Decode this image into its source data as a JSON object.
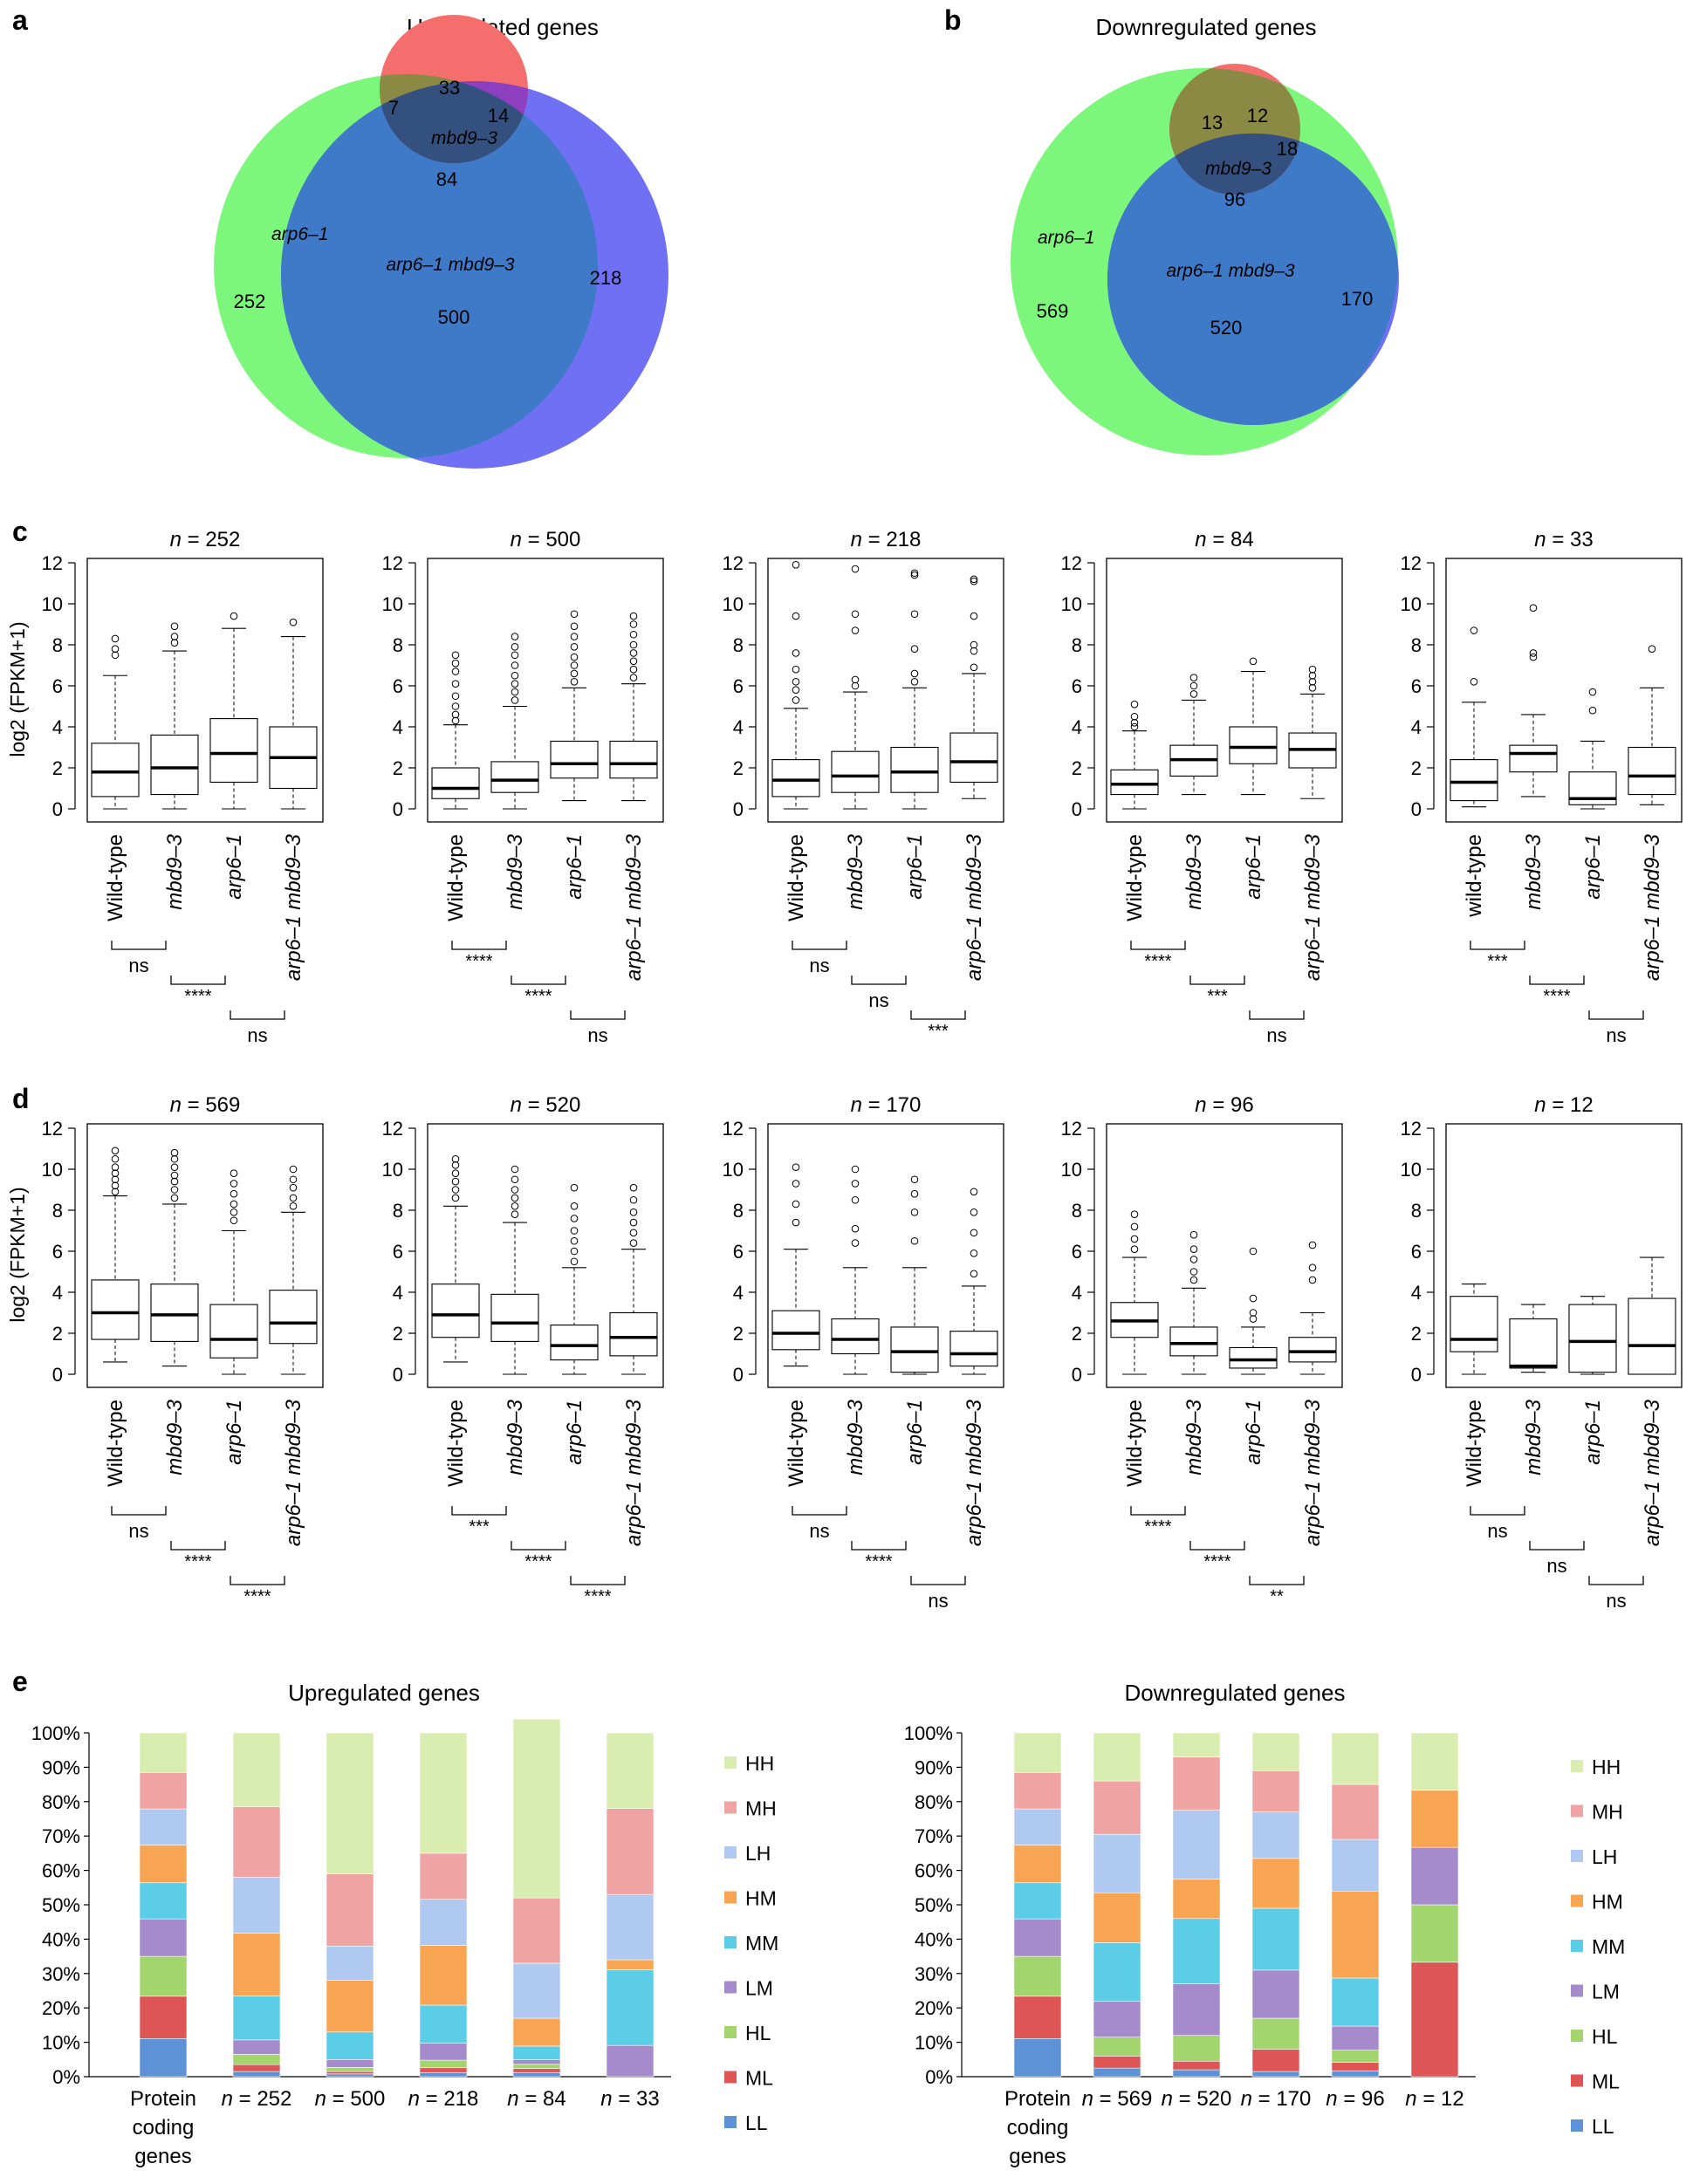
{
  "panel_labels": {
    "a": "a",
    "b": "b",
    "c": "c",
    "d": "d",
    "e": "e"
  },
  "venn": [
    {
      "title": "Upregulated genes",
      "set_labels": {
        "green": "arp6–1",
        "red": "mbd9–3",
        "blue": "arp6–1 mbd9–3"
      },
      "counts": {
        "green_only": "252",
        "red_only": "33",
        "blue_only": "218",
        "green_red": "7",
        "red_blue": "14",
        "all_three": "84",
        "green_blue": "500"
      },
      "colors": {
        "green": "#7CF77C",
        "red": "#F46E6E",
        "blue": "#7070F5",
        "overlap_gb": "#3E7AC8",
        "center": "#34507F"
      }
    },
    {
      "title": "Downregulated genes",
      "set_labels": {
        "green": "arp6–1",
        "red": "mbd9–3",
        "blue": "arp6–1 mbd9–3"
      },
      "counts": {
        "green_only": "569",
        "red_only": "12",
        "blue_only": "170",
        "green_red": "13",
        "red_blue": "18",
        "all_three": "96",
        "green_blue": "520"
      },
      "colors": {
        "green": "#7CF77C",
        "red": "#F46E6E",
        "blue": "#7070F5",
        "overlap_gb": "#3E7AC8",
        "center": "#34507F"
      }
    }
  ],
  "boxplot_ylabel": "log2 (FPKM+1)",
  "boxplot_yticks": [
    "0",
    "2",
    "4",
    "6",
    "8",
    "10",
    "12"
  ],
  "chart_data": [
    {
      "type": "boxplot",
      "panel": "c",
      "ylabel": "log2 (FPKM+1)",
      "ylim": [
        0,
        12
      ],
      "groups": [
        {
          "n_label": "n = 252",
          "categories": [
            "Wild-type",
            "mbd9–3",
            "arp6–1",
            "arp6–1 mbd9–3"
          ],
          "boxes": [
            [
              0.0,
              0.6,
              1.8,
              3.2,
              6.5
            ],
            [
              0.0,
              0.7,
              2.0,
              3.6,
              7.7
            ],
            [
              0.0,
              1.3,
              2.7,
              4.4,
              8.8
            ],
            [
              0.0,
              1.0,
              2.5,
              4.0,
              8.4
            ]
          ],
          "outliers": [
            [
              7.5,
              7.8,
              8.3
            ],
            [
              8.1,
              8.4,
              8.9
            ],
            [
              9.4
            ],
            [
              9.1
            ]
          ],
          "comparisons": [
            "ns",
            "****",
            "ns"
          ]
        },
        {
          "n_label": "n = 500",
          "categories": [
            "Wild-type",
            "mbd9–3",
            "arp6–1",
            "arp6–1 mbd9–3"
          ],
          "boxes": [
            [
              0.0,
              0.5,
              1.0,
              2.0,
              4.1
            ],
            [
              0.0,
              0.8,
              1.4,
              2.3,
              5.0
            ],
            [
              0.4,
              1.5,
              2.2,
              3.3,
              5.9
            ],
            [
              0.4,
              1.5,
              2.2,
              3.3,
              6.1
            ]
          ],
          "outliers": [
            [
              4.3,
              4.6,
              5.0,
              5.5,
              6.1,
              6.7,
              7.1,
              7.5
            ],
            [
              5.3,
              5.7,
              6.1,
              6.5,
              7.0,
              7.5,
              7.9,
              8.4
            ],
            [
              6.2,
              6.6,
              7.0,
              7.4,
              7.9,
              8.4,
              8.9,
              9.5
            ],
            [
              6.4,
              6.8,
              7.2,
              7.6,
              8.0,
              8.5,
              9.0,
              9.4
            ]
          ],
          "comparisons": [
            "****",
            "****",
            "ns"
          ]
        },
        {
          "n_label": "n = 218",
          "categories": [
            "Wild-type",
            "mbd9–3",
            "arp6–1",
            "arp6–1 mbd9–3"
          ],
          "boxes": [
            [
              0.0,
              0.6,
              1.4,
              2.4,
              4.9
            ],
            [
              0.0,
              0.8,
              1.6,
              2.8,
              5.7
            ],
            [
              0.0,
              0.8,
              1.8,
              3.0,
              5.9
            ],
            [
              0.5,
              1.3,
              2.3,
              3.7,
              6.6
            ]
          ],
          "outliers": [
            [
              5.3,
              5.8,
              6.2,
              6.8,
              7.6,
              9.4,
              11.9
            ],
            [
              6.0,
              6.3,
              8.7,
              9.5,
              11.7
            ],
            [
              6.2,
              6.6,
              7.8,
              9.5,
              11.4,
              11.5
            ],
            [
              6.9,
              7.7,
              8.0,
              9.4,
              11.1,
              11.2
            ]
          ],
          "comparisons": [
            "ns",
            "ns",
            "***"
          ]
        },
        {
          "n_label": "n = 84",
          "categories": [
            "Wild-type",
            "mbd9–3",
            "arp6–1",
            "arp6–1 mbd9–3"
          ],
          "boxes": [
            [
              0.0,
              0.7,
              1.2,
              1.9,
              3.8
            ],
            [
              0.7,
              1.6,
              2.4,
              3.1,
              5.3
            ],
            [
              0.7,
              2.2,
              3.0,
              4.0,
              6.7
            ],
            [
              0.5,
              2.0,
              2.9,
              3.7,
              5.6
            ]
          ],
          "outliers": [
            [
              4.0,
              4.2,
              4.5,
              5.1
            ],
            [
              5.6,
              6.0,
              6.4
            ],
            [
              7.2
            ],
            [
              5.9,
              6.2,
              6.5,
              6.8
            ]
          ],
          "comparisons": [
            "****",
            "***",
            "ns"
          ]
        },
        {
          "n_label": "n = 33",
          "categories": [
            "wild-type",
            "mbd9–3",
            "arp6–1",
            "arp6–1 mbd9–3"
          ],
          "boxes": [
            [
              0.1,
              0.4,
              1.3,
              2.4,
              5.2
            ],
            [
              0.6,
              1.8,
              2.7,
              3.1,
              4.6
            ],
            [
              0.0,
              0.2,
              0.5,
              1.8,
              3.3
            ],
            [
              0.2,
              0.7,
              1.6,
              3.0,
              5.9
            ]
          ],
          "outliers": [
            [
              6.2,
              8.7
            ],
            [
              7.4,
              7.6,
              9.8
            ],
            [
              4.8,
              5.7
            ],
            [
              7.8
            ]
          ],
          "comparisons": [
            "***",
            "****",
            "ns"
          ]
        }
      ]
    },
    {
      "type": "boxplot",
      "panel": "d",
      "ylabel": "log2 (FPKM+1)",
      "ylim": [
        0,
        12
      ],
      "groups": [
        {
          "n_label": "n = 569",
          "categories": [
            "Wild-type",
            "mbd9–3",
            "arp6–1",
            "arp6–1 mbd9–3"
          ],
          "boxes": [
            [
              0.6,
              1.7,
              3.0,
              4.6,
              8.7
            ],
            [
              0.4,
              1.6,
              2.9,
              4.4,
              8.3
            ],
            [
              0.0,
              0.8,
              1.7,
              3.4,
              7.0
            ],
            [
              0.0,
              1.5,
              2.5,
              4.1,
              7.9
            ]
          ],
          "outliers": [
            [
              8.9,
              9.2,
              9.5,
              9.8,
              10.1,
              10.5,
              10.9
            ],
            [
              8.6,
              9.0,
              9.4,
              9.7,
              10.1,
              10.5,
              10.8
            ],
            [
              7.5,
              7.9,
              8.3,
              8.8,
              9.3,
              9.8
            ],
            [
              8.2,
              8.6,
              9.1,
              9.5,
              10.0
            ]
          ],
          "comparisons": [
            "ns",
            "****",
            "****"
          ]
        },
        {
          "n_label": "n = 520",
          "categories": [
            "Wild-type",
            "mbd9–3",
            "arp6–1",
            "arp6–1 mbd9–3"
          ],
          "boxes": [
            [
              0.6,
              1.8,
              2.9,
              4.4,
              8.2
            ],
            [
              0.0,
              1.6,
              2.5,
              3.9,
              7.4
            ],
            [
              0.0,
              0.7,
              1.4,
              2.4,
              5.2
            ],
            [
              0.0,
              0.9,
              1.8,
              3.0,
              6.1
            ]
          ],
          "outliers": [
            [
              8.6,
              9.0,
              9.4,
              9.8,
              10.2,
              10.5
            ],
            [
              7.8,
              8.2,
              8.6,
              9.0,
              9.5,
              10.0
            ],
            [
              5.5,
              6.0,
              6.5,
              7.0,
              7.6,
              8.2,
              9.1
            ],
            [
              6.4,
              6.9,
              7.4,
              7.9,
              8.5,
              9.1
            ]
          ],
          "comparisons": [
            "***",
            "****",
            "****"
          ]
        },
        {
          "n_label": "n = 170",
          "categories": [
            "Wild-type",
            "mbd9–3",
            "arp6–1",
            "arp6–1 mbd9–3"
          ],
          "boxes": [
            [
              0.4,
              1.2,
              2.0,
              3.1,
              6.1
            ],
            [
              0.0,
              1.0,
              1.7,
              2.7,
              5.2
            ],
            [
              0.0,
              0.1,
              1.1,
              2.3,
              5.2
            ],
            [
              0.0,
              0.4,
              1.0,
              2.1,
              4.3
            ]
          ],
          "outliers": [
            [
              7.4,
              8.3,
              9.3,
              10.1
            ],
            [
              6.4,
              7.1,
              8.5,
              9.3,
              10.0
            ],
            [
              6.5,
              7.9,
              8.8,
              9.5
            ],
            [
              4.9,
              5.9,
              6.9,
              7.9,
              8.9
            ]
          ],
          "comparisons": [
            "ns",
            "****",
            "ns"
          ]
        },
        {
          "n_label": "n = 96",
          "categories": [
            "Wild-type",
            "mbd9–3",
            "arp6–1",
            "arp6–1 mbd9–3"
          ],
          "boxes": [
            [
              0.0,
              1.8,
              2.6,
              3.5,
              5.7
            ],
            [
              0.0,
              0.9,
              1.5,
              2.3,
              4.2
            ],
            [
              0.0,
              0.3,
              0.7,
              1.3,
              2.3
            ],
            [
              0.0,
              0.6,
              1.1,
              1.8,
              3.0
            ]
          ],
          "outliers": [
            [
              6.1,
              6.6,
              7.2,
              7.8
            ],
            [
              4.6,
              5.0,
              5.6,
              6.1,
              6.8
            ],
            [
              2.7,
              3.0,
              3.7,
              6.0
            ],
            [
              4.6,
              5.2,
              6.3
            ]
          ],
          "comparisons": [
            "****",
            "****",
            "**"
          ]
        },
        {
          "n_label": "n = 12",
          "categories": [
            "Wild-type",
            "mbd9–3",
            "arp6–1",
            "arp6–1 mbd9–3"
          ],
          "boxes": [
            [
              0.0,
              1.1,
              1.7,
              3.8,
              4.4
            ],
            [
              0.1,
              0.3,
              0.4,
              2.7,
              3.4
            ],
            [
              0.0,
              0.1,
              1.6,
              3.4,
              3.8
            ],
            [
              0.0,
              0.0,
              1.4,
              3.7,
              5.7
            ]
          ],
          "outliers": [
            [],
            [],
            [],
            []
          ],
          "comparisons": [
            "ns",
            "ns",
            "ns"
          ]
        }
      ]
    },
    {
      "type": "stacked_bar",
      "panel": "e",
      "title": "Upregulated genes",
      "ylim": [
        0,
        100
      ],
      "yticks": [
        "0%",
        "10%",
        "20%",
        "30%",
        "40%",
        "50%",
        "60%",
        "70%",
        "80%",
        "90%",
        "100%"
      ],
      "categories": [
        "Protein coding genes",
        "n = 252",
        "n = 500",
        "n = 218",
        "n = 84",
        "n = 33"
      ],
      "series": [
        {
          "name": "LL",
          "values": [
            11.1,
            1.5,
            0.8,
            1.2,
            1.2,
            0.0
          ]
        },
        {
          "name": "ML",
          "values": [
            12.3,
            2.0,
            0.7,
            1.4,
            1.2,
            0.0
          ]
        },
        {
          "name": "HL",
          "values": [
            11.6,
            3.0,
            1.2,
            2.2,
            1.2,
            0.0
          ]
        },
        {
          "name": "LM",
          "values": [
            10.9,
            4.2,
            2.3,
            5.0,
            1.3,
            9.1
          ]
        },
        {
          "name": "MM",
          "values": [
            10.5,
            12.8,
            8.0,
            11.0,
            4.0,
            22.0
          ]
        },
        {
          "name": "HM",
          "values": [
            11.0,
            18.3,
            15.0,
            17.4,
            8.1,
            2.9
          ]
        },
        {
          "name": "LH",
          "values": [
            10.5,
            16.2,
            10.0,
            13.4,
            16.0,
            19.0
          ]
        },
        {
          "name": "MH",
          "values": [
            10.6,
            20.5,
            21.0,
            13.4,
            19.0,
            25.0
          ]
        },
        {
          "name": "HH",
          "values": [
            11.5,
            21.5,
            41.0,
            35.0,
            52.0,
            22.0
          ]
        }
      ],
      "n_italic": "n",
      "n_labels": [
        "= 252",
        "= 500",
        "= 218",
        "= 84",
        "= 33"
      ],
      "first_category_lines": [
        "Protein",
        "coding",
        "genes"
      ]
    },
    {
      "type": "stacked_bar",
      "panel": "e",
      "title": "Downregulated genes",
      "ylim": [
        0,
        100
      ],
      "yticks": [
        "0%",
        "10%",
        "20%",
        "30%",
        "40%",
        "50%",
        "60%",
        "70%",
        "80%",
        "90%",
        "100%"
      ],
      "categories": [
        "Protein coding genes",
        "n = 569",
        "n = 520",
        "n = 170",
        "n = 96",
        "n = 12"
      ],
      "series": [
        {
          "name": "LL",
          "values": [
            11.1,
            2.5,
            2.0,
            1.5,
            1.7,
            0.0
          ]
        },
        {
          "name": "ML",
          "values": [
            12.3,
            3.5,
            2.5,
            6.5,
            2.5,
            33.3
          ]
        },
        {
          "name": "HL",
          "values": [
            11.6,
            5.5,
            7.5,
            9.0,
            3.5,
            16.7
          ]
        },
        {
          "name": "LM",
          "values": [
            10.9,
            10.5,
            15.0,
            14.0,
            7.0,
            16.7
          ]
        },
        {
          "name": "MM",
          "values": [
            10.5,
            17.0,
            19.0,
            18.0,
            14.0,
            0.0
          ]
        },
        {
          "name": "HM",
          "values": [
            11.0,
            14.5,
            11.5,
            14.5,
            25.3,
            16.6
          ]
        },
        {
          "name": "LH",
          "values": [
            10.5,
            17.0,
            20.0,
            13.5,
            15.0,
            0.0
          ]
        },
        {
          "name": "MH",
          "values": [
            10.6,
            15.5,
            15.5,
            12.0,
            16.0,
            0.0
          ]
        },
        {
          "name": "HH",
          "values": [
            11.5,
            14.0,
            7.0,
            11.0,
            15.0,
            16.7
          ]
        }
      ],
      "n_italic": "n",
      "n_labels": [
        "= 569",
        "= 520",
        "= 170",
        "= 96",
        "= 12"
      ],
      "first_category_lines": [
        "Protein",
        "coding",
        "genes"
      ]
    }
  ],
  "legend": {
    "order": [
      "HH",
      "MH",
      "LH",
      "HM",
      "MM",
      "LM",
      "HL",
      "ML",
      "LL"
    ],
    "colors": {
      "HH": "#D9EDB0",
      "MH": "#F0A3A3",
      "LH": "#AFC9F0",
      "HM": "#F7A552",
      "MM": "#5BCDE6",
      "LM": "#A58BCB",
      "HL": "#A3D56E",
      "ML": "#DE5555",
      "LL": "#5D93D6"
    }
  }
}
